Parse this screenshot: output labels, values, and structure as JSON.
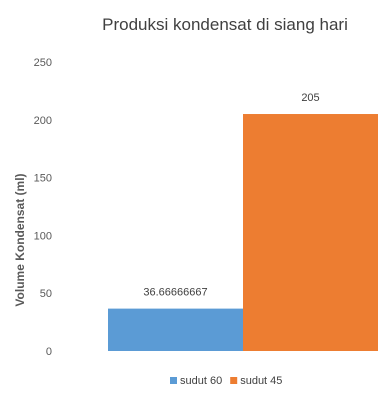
{
  "chart_data": {
    "type": "bar",
    "title": "Produksi kondensat di siang hari",
    "ylabel": "Volume Kondensat (ml)",
    "xlabel": "",
    "ylim": [
      0,
      250
    ],
    "yticks": [
      0,
      50,
      100,
      150,
      200,
      250
    ],
    "grid": false,
    "legend": "bottom",
    "series": [
      {
        "name": "sudut 60",
        "value": 36.66666667,
        "label": "36.66666667",
        "color": "#5B9BD5"
      },
      {
        "name": "sudut 45",
        "value": 205,
        "label": "205",
        "color": "#ED7D31"
      }
    ]
  }
}
